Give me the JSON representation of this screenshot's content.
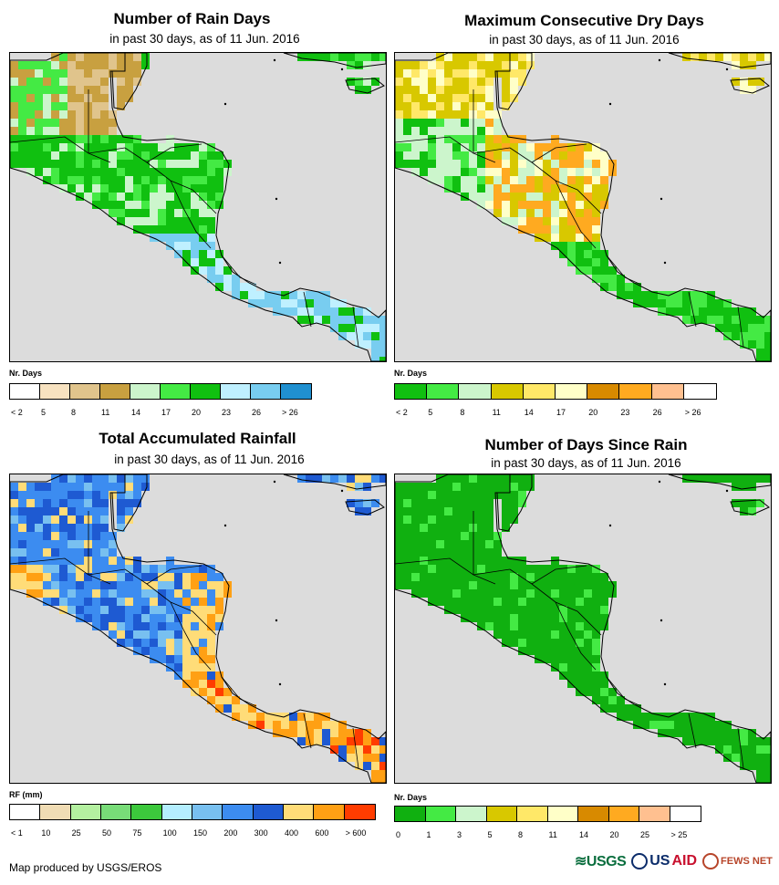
{
  "panels": [
    {
      "id": "rain-days",
      "title": "Number of Rain Days",
      "subtitle": "in past 30 days, as of 11 Jun. 2016",
      "legend_title": "Nr. Days",
      "legend_colors": [
        "#ffffff",
        "#f7e2c0",
        "#e0c48c",
        "#c8a040",
        "#ccf5cc",
        "#44ea44",
        "#10c010",
        "#bff0ff",
        "#78cdf0",
        "#2090d0"
      ],
      "legend_labels": [
        "< 2",
        "5",
        "8",
        "11",
        "14",
        "17",
        "20",
        "23",
        "26",
        "> 26"
      ],
      "palette": "rain"
    },
    {
      "id": "dry-days",
      "title": "Maximum Consecutive Dry Days",
      "subtitle": "in past 30 days, as of 11 Jun. 2016",
      "legend_title": "Nr. Days",
      "legend_colors": [
        "#10c010",
        "#44ea44",
        "#ccf5cc",
        "#d8c800",
        "#ffe868",
        "#ffffc8",
        "#d88a00",
        "#ffaa20",
        "#ffc090",
        "#ffffff"
      ],
      "legend_labels": [
        "< 2",
        "5",
        "8",
        "11",
        "14",
        "17",
        "20",
        "23",
        "26",
        "> 26"
      ],
      "palette": "dry"
    },
    {
      "id": "rainfall",
      "title": "Total Accumulated Rainfall",
      "subtitle": "in past 30 days, as of 11 Jun. 2016",
      "legend_title": "RF (mm)",
      "legend_colors": [
        "#ffffff",
        "#f0dcb4",
        "#b4f0a0",
        "#78dc78",
        "#3cc83c",
        "#b4eeff",
        "#78c0f0",
        "#3c8cf0",
        "#1e5ad2",
        "#ffdc78",
        "#ffa014",
        "#ff3c00"
      ],
      "legend_labels": [
        "< 1",
        "10",
        "25",
        "50",
        "75",
        "100",
        "150",
        "200",
        "300",
        "400",
        "600",
        "> 600"
      ],
      "palette": "rf"
    },
    {
      "id": "since-rain",
      "title": "Number of Days Since Rain",
      "subtitle": "in past 30 days, as of 11 Jun. 2016",
      "legend_title": "Nr. Days",
      "legend_colors": [
        "#10b010",
        "#44ea44",
        "#ccf5cc",
        "#d8c800",
        "#ffe868",
        "#ffffc8",
        "#d88a00",
        "#ffaa20",
        "#ffc090",
        "#ffffff"
      ],
      "legend_labels": [
        "0",
        "1",
        "3",
        "5",
        "8",
        "11",
        "14",
        "20",
        "25",
        "> 25"
      ],
      "palette": "since"
    }
  ],
  "footer": {
    "credit": "Map produced by USGS/EROS"
  },
  "logos": {
    "usgs": "USGS",
    "usaid_us": "US",
    "usaid_aid": "AID",
    "fews": "FEWS NET"
  },
  "colors": {
    "sea": "#dcdcdc",
    "border": "#000000"
  }
}
